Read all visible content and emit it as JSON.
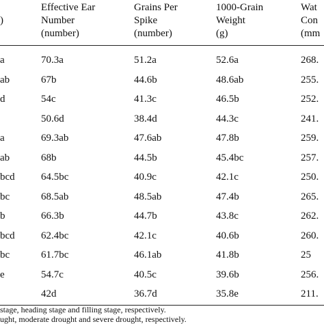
{
  "table": {
    "header": [
      [
        ")"
      ],
      [
        "Effective Ear",
        "Number",
        "(number)"
      ],
      [
        "Grains Per",
        "Spike",
        "(number)"
      ],
      [
        "1000-Grain",
        "Weight",
        "(g)"
      ],
      [
        "Wat",
        "Con",
        "(mm"
      ]
    ],
    "rows": [
      [
        "a",
        "70.3a",
        "51.2a",
        "52.6a",
        "268."
      ],
      [
        "ab",
        "67b",
        "44.6b",
        "48.6ab",
        "255."
      ],
      [
        "d",
        "54c",
        "41.3c",
        "46.5b",
        "252."
      ],
      [
        "",
        "50.6d",
        "38.4d",
        "44.3c",
        "241."
      ],
      [
        "a",
        "69.3ab",
        "47.6ab",
        "47.8b",
        "259."
      ],
      [
        "ab",
        "68b",
        "44.5b",
        "45.4bc",
        "257."
      ],
      [
        "bcd",
        "64.5bc",
        "40.9c",
        "42.1c",
        "250."
      ],
      [
        "bc",
        "68.5ab",
        "48.5ab",
        "47.4b",
        "265."
      ],
      [
        "b",
        "66.3b",
        "44.7b",
        "43.8c",
        "262."
      ],
      [
        "bcd",
        "62.4bc",
        "42.1c",
        "40.6b",
        "260."
      ],
      [
        "bc",
        "61.7bc",
        "46.1ab",
        "41.8b",
        "25"
      ],
      [
        "e",
        "54.7c",
        "40.5c",
        "39.6b",
        "256."
      ],
      [
        "",
        "42d",
        "36.7d",
        "35.8e",
        "211."
      ]
    ]
  },
  "footnotes": [
    "stage, heading stage and filling stage, respectively.",
    "ught, moderate drought and severe drought, respectively."
  ]
}
